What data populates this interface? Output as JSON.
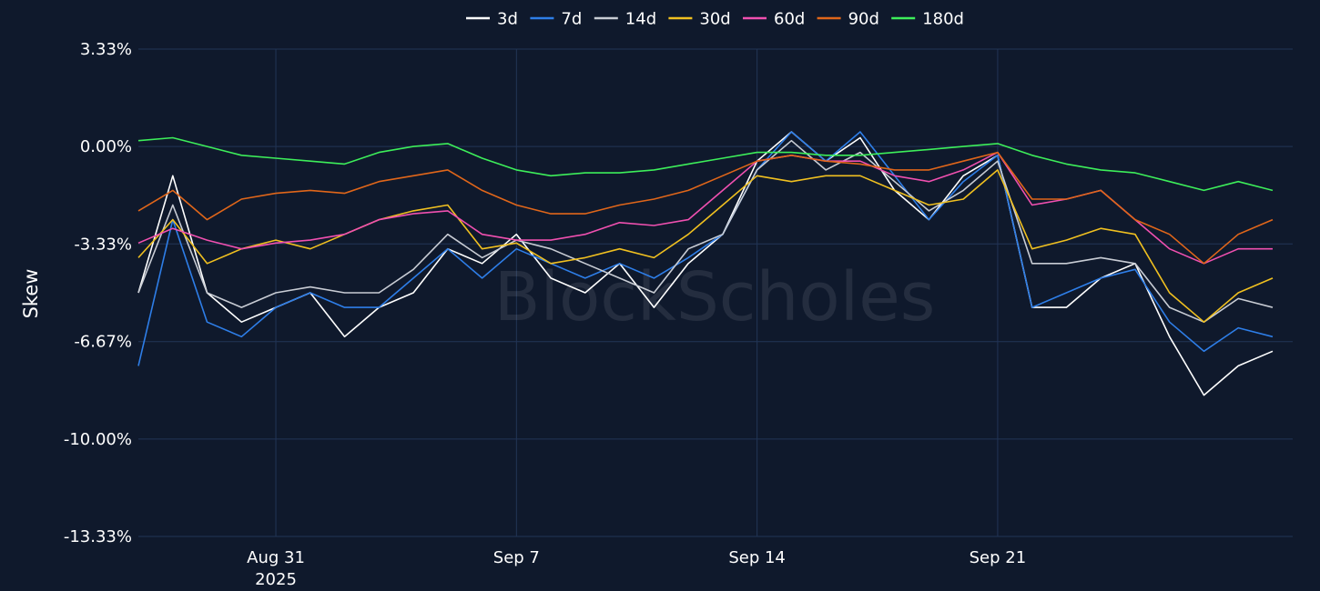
{
  "watermark": "BlockScholes",
  "chart_data": {
    "type": "line",
    "ylabel": "Skew",
    "ylim": [
      -13.33,
      3.33
    ],
    "y_ticks": [
      {
        "value": 3.33,
        "label": "3.33%"
      },
      {
        "value": 0,
        "label": "0.00%"
      },
      {
        "value": -3.33,
        "label": "-3.33%"
      },
      {
        "value": -6.67,
        "label": "-6.67%"
      },
      {
        "value": -10.0,
        "label": "-10.00%"
      },
      {
        "value": -13.33,
        "label": "-13.33%"
      }
    ],
    "x_range": [
      "2025-08-26",
      "2025-09-28T14:00"
    ],
    "x_ticks": [
      {
        "date": "2025-08-30",
        "label": "Aug 31",
        "sublabel": "2025"
      },
      {
        "date": "2025-09-06",
        "label": "Sep 7",
        "sublabel": ""
      },
      {
        "date": "2025-09-13",
        "label": "Sep 14",
        "sublabel": ""
      },
      {
        "date": "2025-09-20",
        "label": "Sep 21",
        "sublabel": ""
      }
    ],
    "grid": true,
    "legend_position": "top-center",
    "series": [
      {
        "name": "3d",
        "color": "#ffffff",
        "x": [
          "2025-08-26",
          "2025-08-27",
          "2025-08-28",
          "2025-08-29",
          "2025-08-30",
          "2025-08-31",
          "2025-09-01",
          "2025-09-02",
          "2025-09-03",
          "2025-09-04",
          "2025-09-05",
          "2025-09-06",
          "2025-09-07",
          "2025-09-08",
          "2025-09-09",
          "2025-09-10",
          "2025-09-11",
          "2025-09-12",
          "2025-09-13",
          "2025-09-14",
          "2025-09-15",
          "2025-09-16",
          "2025-09-17",
          "2025-09-18",
          "2025-09-19",
          "2025-09-20",
          "2025-09-21",
          "2025-09-22",
          "2025-09-23",
          "2025-09-24",
          "2025-09-25",
          "2025-09-26",
          "2025-09-27",
          "2025-09-28"
        ],
        "values": [
          -5.0,
          -1.0,
          -5.0,
          -6.0,
          -5.5,
          -5.0,
          -6.5,
          -5.5,
          -5.0,
          -3.5,
          -4.0,
          -3.0,
          -4.5,
          -5.0,
          -4.0,
          -5.5,
          -4.0,
          -3.0,
          -0.5,
          0.5,
          -0.5,
          0.3,
          -1.5,
          -2.5,
          -1.0,
          -0.3,
          -5.5,
          -5.5,
          -4.5,
          -4.0,
          -6.5,
          -8.5,
          -7.5,
          -7.0
        ]
      },
      {
        "name": "7d",
        "color": "#2e7ee8",
        "x": [
          "2025-08-26",
          "2025-08-27",
          "2025-08-28",
          "2025-08-29",
          "2025-08-30",
          "2025-08-31",
          "2025-09-01",
          "2025-09-02",
          "2025-09-03",
          "2025-09-04",
          "2025-09-05",
          "2025-09-06",
          "2025-09-07",
          "2025-09-08",
          "2025-09-09",
          "2025-09-10",
          "2025-09-11",
          "2025-09-12",
          "2025-09-13",
          "2025-09-14",
          "2025-09-15",
          "2025-09-16",
          "2025-09-17",
          "2025-09-18",
          "2025-09-19",
          "2025-09-20",
          "2025-09-21",
          "2025-09-22",
          "2025-09-23",
          "2025-09-24",
          "2025-09-25",
          "2025-09-26",
          "2025-09-27",
          "2025-09-28"
        ],
        "values": [
          -7.5,
          -2.5,
          -6.0,
          -6.5,
          -5.5,
          -5.0,
          -5.5,
          -5.5,
          -4.5,
          -3.5,
          -4.5,
          -3.5,
          -4.0,
          -4.5,
          -4.0,
          -4.5,
          -3.8,
          -3.0,
          -0.8,
          0.5,
          -0.5,
          0.5,
          -1.0,
          -2.5,
          -1.2,
          -0.3,
          -5.5,
          -5.0,
          -4.5,
          -4.2,
          -6.0,
          -7.0,
          -6.2,
          -6.5
        ]
      },
      {
        "name": "14d",
        "color": "#c8ccd4",
        "x": [
          "2025-08-26",
          "2025-08-27",
          "2025-08-28",
          "2025-08-29",
          "2025-08-30",
          "2025-08-31",
          "2025-09-01",
          "2025-09-02",
          "2025-09-03",
          "2025-09-04",
          "2025-09-05",
          "2025-09-06",
          "2025-09-07",
          "2025-09-08",
          "2025-09-09",
          "2025-09-10",
          "2025-09-11",
          "2025-09-12",
          "2025-09-13",
          "2025-09-14",
          "2025-09-15",
          "2025-09-16",
          "2025-09-17",
          "2025-09-18",
          "2025-09-19",
          "2025-09-20",
          "2025-09-21",
          "2025-09-22",
          "2025-09-23",
          "2025-09-24",
          "2025-09-25",
          "2025-09-26",
          "2025-09-27",
          "2025-09-28"
        ],
        "values": [
          -5.0,
          -2.0,
          -5.0,
          -5.5,
          -5.0,
          -4.8,
          -5.0,
          -5.0,
          -4.2,
          -3.0,
          -3.8,
          -3.2,
          -3.5,
          -4.0,
          -4.5,
          -5.0,
          -3.5,
          -3.0,
          -0.8,
          0.2,
          -0.8,
          -0.2,
          -1.2,
          -2.2,
          -1.5,
          -0.5,
          -4.0,
          -4.0,
          -3.8,
          -4.0,
          -5.5,
          -6.0,
          -5.2,
          -5.5
        ]
      },
      {
        "name": "30d",
        "color": "#f0c020",
        "x": [
          "2025-08-26",
          "2025-08-27",
          "2025-08-28",
          "2025-08-29",
          "2025-08-30",
          "2025-08-31",
          "2025-09-01",
          "2025-09-02",
          "2025-09-03",
          "2025-09-04",
          "2025-09-05",
          "2025-09-06",
          "2025-09-07",
          "2025-09-08",
          "2025-09-09",
          "2025-09-10",
          "2025-09-11",
          "2025-09-12",
          "2025-09-13",
          "2025-09-14",
          "2025-09-15",
          "2025-09-16",
          "2025-09-17",
          "2025-09-18",
          "2025-09-19",
          "2025-09-20",
          "2025-09-21",
          "2025-09-22",
          "2025-09-23",
          "2025-09-24",
          "2025-09-25",
          "2025-09-26",
          "2025-09-27",
          "2025-09-28"
        ],
        "values": [
          -3.8,
          -2.5,
          -4.0,
          -3.5,
          -3.2,
          -3.5,
          -3.0,
          -2.5,
          -2.2,
          -2.0,
          -3.5,
          -3.3,
          -4.0,
          -3.8,
          -3.5,
          -3.8,
          -3.0,
          -2.0,
          -1.0,
          -1.2,
          -1.0,
          -1.0,
          -1.5,
          -2.0,
          -1.8,
          -0.8,
          -3.5,
          -3.2,
          -2.8,
          -3.0,
          -5.0,
          -6.0,
          -5.0,
          -4.5
        ]
      },
      {
        "name": "60d",
        "color": "#f050b0",
        "x": [
          "2025-08-26",
          "2025-08-27",
          "2025-08-28",
          "2025-08-29",
          "2025-08-30",
          "2025-08-31",
          "2025-09-01",
          "2025-09-02",
          "2025-09-03",
          "2025-09-04",
          "2025-09-05",
          "2025-09-06",
          "2025-09-07",
          "2025-09-08",
          "2025-09-09",
          "2025-09-10",
          "2025-09-11",
          "2025-09-12",
          "2025-09-13",
          "2025-09-14",
          "2025-09-15",
          "2025-09-16",
          "2025-09-17",
          "2025-09-18",
          "2025-09-19",
          "2025-09-20",
          "2025-09-21",
          "2025-09-22",
          "2025-09-23",
          "2025-09-24",
          "2025-09-25",
          "2025-09-26",
          "2025-09-27",
          "2025-09-28"
        ],
        "values": [
          -3.3,
          -2.8,
          -3.2,
          -3.5,
          -3.3,
          -3.2,
          -3.0,
          -2.5,
          -2.3,
          -2.2,
          -3.0,
          -3.2,
          -3.2,
          -3.0,
          -2.6,
          -2.7,
          -2.5,
          -1.5,
          -0.5,
          -0.3,
          -0.5,
          -0.5,
          -1.0,
          -1.2,
          -0.8,
          -0.2,
          -2.0,
          -1.8,
          -1.5,
          -2.5,
          -3.5,
          -4.0,
          -3.5,
          -3.5
        ]
      },
      {
        "name": "90d",
        "color": "#e0661a",
        "x": [
          "2025-08-26",
          "2025-08-27",
          "2025-08-28",
          "2025-08-29",
          "2025-08-30",
          "2025-08-31",
          "2025-09-01",
          "2025-09-02",
          "2025-09-03",
          "2025-09-04",
          "2025-09-05",
          "2025-09-06",
          "2025-09-07",
          "2025-09-08",
          "2025-09-09",
          "2025-09-10",
          "2025-09-11",
          "2025-09-12",
          "2025-09-13",
          "2025-09-14",
          "2025-09-15",
          "2025-09-16",
          "2025-09-17",
          "2025-09-18",
          "2025-09-19",
          "2025-09-20",
          "2025-09-21",
          "2025-09-22",
          "2025-09-23",
          "2025-09-24",
          "2025-09-25",
          "2025-09-26",
          "2025-09-27",
          "2025-09-28"
        ],
        "values": [
          -2.2,
          -1.5,
          -2.5,
          -1.8,
          -1.6,
          -1.5,
          -1.6,
          -1.2,
          -1.0,
          -0.8,
          -1.5,
          -2.0,
          -2.3,
          -2.3,
          -2.0,
          -1.8,
          -1.5,
          -1.0,
          -0.5,
          -0.3,
          -0.5,
          -0.6,
          -0.8,
          -0.8,
          -0.5,
          -0.2,
          -1.8,
          -1.8,
          -1.5,
          -2.5,
          -3.0,
          -4.0,
          -3.0,
          -2.5
        ]
      },
      {
        "name": "180d",
        "color": "#3dee5a",
        "x": [
          "2025-08-26",
          "2025-08-27",
          "2025-08-28",
          "2025-08-29",
          "2025-08-30",
          "2025-08-31",
          "2025-09-01",
          "2025-09-02",
          "2025-09-03",
          "2025-09-04",
          "2025-09-05",
          "2025-09-06",
          "2025-09-07",
          "2025-09-08",
          "2025-09-09",
          "2025-09-10",
          "2025-09-11",
          "2025-09-12",
          "2025-09-13",
          "2025-09-14",
          "2025-09-15",
          "2025-09-16",
          "2025-09-17",
          "2025-09-18",
          "2025-09-19",
          "2025-09-20",
          "2025-09-21",
          "2025-09-22",
          "2025-09-23",
          "2025-09-24",
          "2025-09-25",
          "2025-09-26",
          "2025-09-27",
          "2025-09-28"
        ],
        "values": [
          0.2,
          0.3,
          0.0,
          -0.3,
          -0.4,
          -0.5,
          -0.6,
          -0.2,
          0.0,
          0.1,
          -0.4,
          -0.8,
          -1.0,
          -0.9,
          -0.9,
          -0.8,
          -0.6,
          -0.4,
          -0.2,
          -0.2,
          -0.3,
          -0.3,
          -0.2,
          -0.1,
          0.0,
          0.1,
          -0.3,
          -0.6,
          -0.8,
          -0.9,
          -1.2,
          -1.5,
          -1.2,
          -1.5
        ]
      }
    ]
  }
}
